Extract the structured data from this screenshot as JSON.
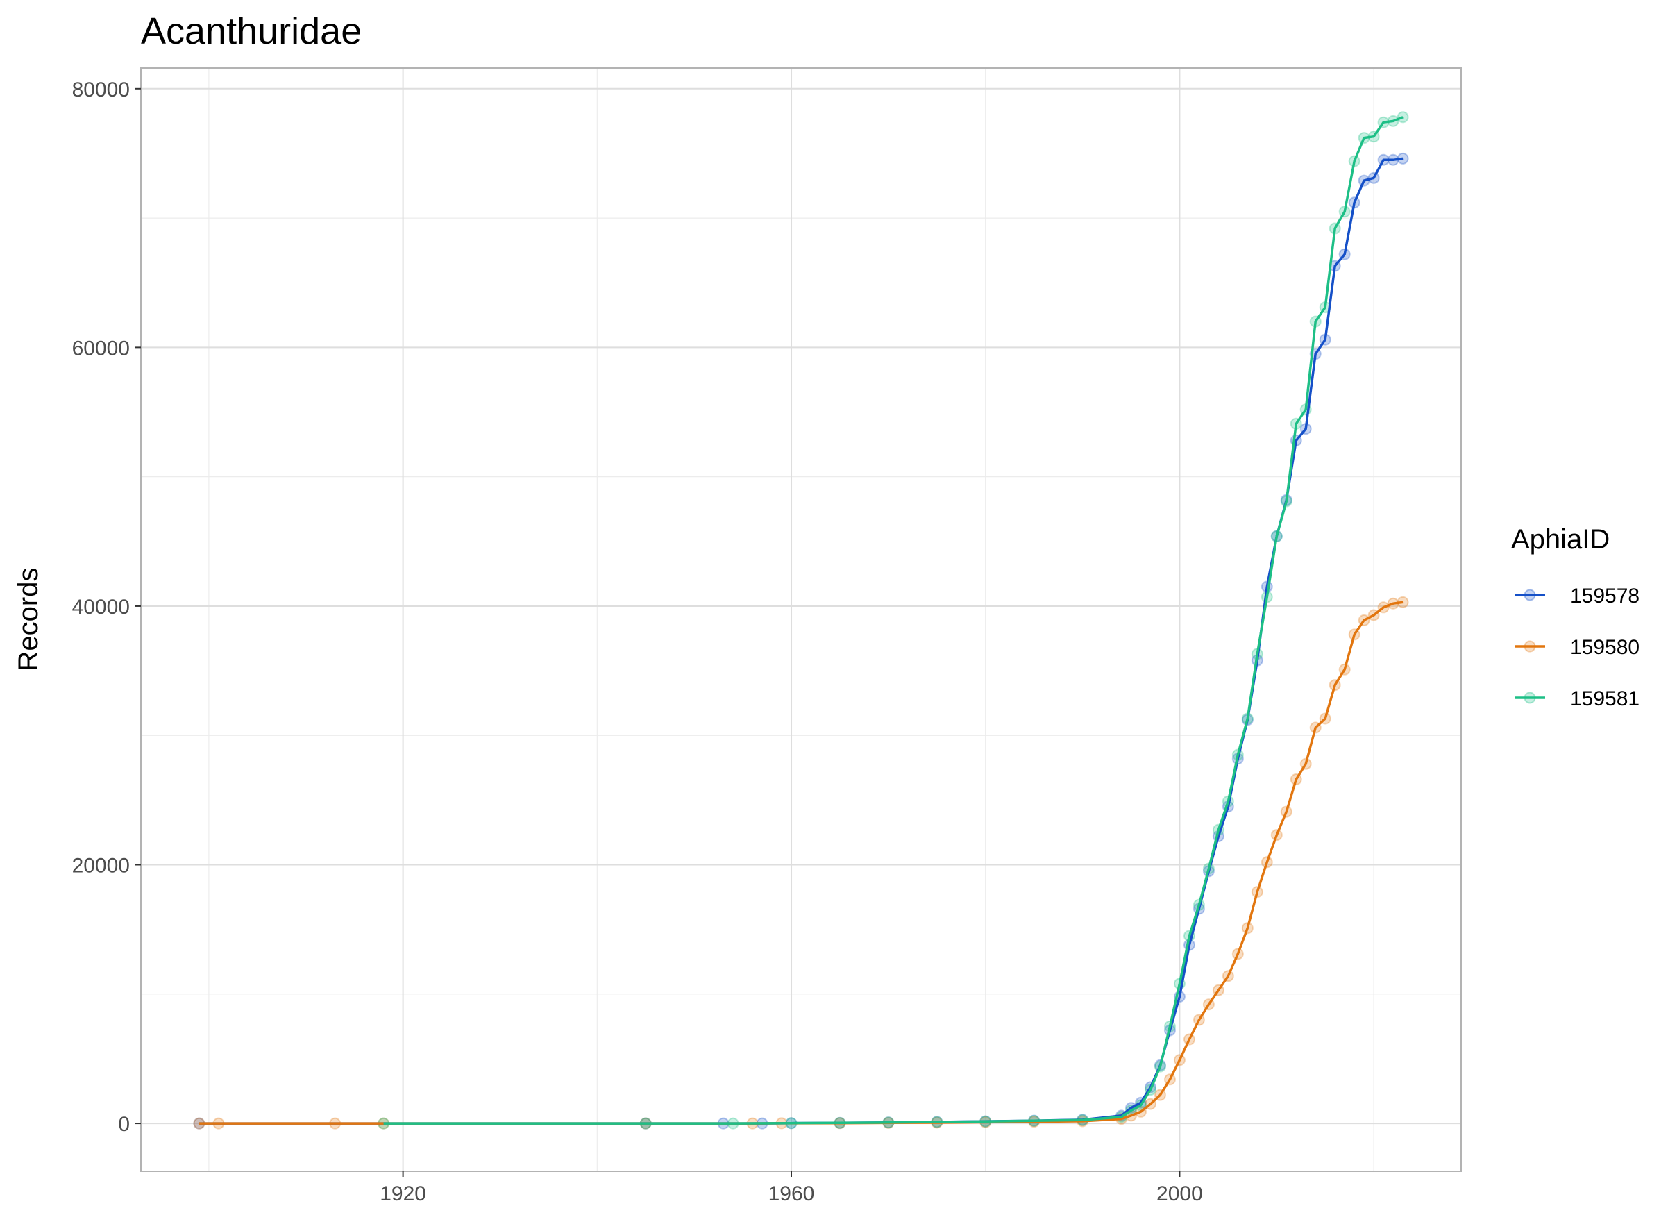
{
  "chart_data": {
    "type": "line",
    "title": "Acanthuridae",
    "xlabel": "",
    "ylabel": "Records",
    "xlim": [
      1893,
      2029
    ],
    "ylim": [
      -3700,
      81600
    ],
    "x_ticks": [
      1920,
      1960,
      2000
    ],
    "y_ticks": [
      0,
      20000,
      40000,
      60000,
      80000
    ],
    "grid": true,
    "legend": {
      "title": "AphiaID",
      "position": "right"
    },
    "markers": "points with low opacity",
    "series": [
      {
        "name": "159578",
        "color": "#1550c8",
        "points": [
          [
            1899,
            0
          ],
          [
            1945,
            0
          ],
          [
            1953,
            0
          ],
          [
            1957,
            0
          ],
          [
            1960,
            20
          ],
          [
            1965,
            40
          ],
          [
            1970,
            70
          ],
          [
            1975,
            110
          ],
          [
            1980,
            160
          ],
          [
            1985,
            210
          ],
          [
            1990,
            280
          ],
          [
            1994,
            600
          ],
          [
            1995,
            1200
          ],
          [
            1996,
            1600
          ],
          [
            1997,
            2800
          ],
          [
            1998,
            4500
          ],
          [
            1999,
            7200
          ],
          [
            2000,
            9800
          ],
          [
            2001,
            13800
          ],
          [
            2002,
            16600
          ],
          [
            2003,
            19500
          ],
          [
            2004,
            22200
          ],
          [
            2005,
            24500
          ],
          [
            2006,
            28200
          ],
          [
            2007,
            31200
          ],
          [
            2008,
            35800
          ],
          [
            2009,
            41500
          ],
          [
            2010,
            45400
          ],
          [
            2011,
            48200
          ],
          [
            2012,
            52800
          ],
          [
            2013,
            53700
          ],
          [
            2014,
            59500
          ],
          [
            2015,
            60600
          ],
          [
            2016,
            66300
          ],
          [
            2017,
            67200
          ],
          [
            2018,
            71200
          ],
          [
            2019,
            72900
          ],
          [
            2020,
            73100
          ],
          [
            2021,
            74500
          ],
          [
            2022,
            74500
          ],
          [
            2023,
            74600
          ]
        ]
      },
      {
        "name": "159580",
        "color": "#e2760f",
        "points": [
          [
            1899,
            0
          ],
          [
            1901,
            0
          ],
          [
            1913,
            0
          ],
          [
            1918,
            0
          ],
          [
            1945,
            0
          ],
          [
            1956,
            0
          ],
          [
            1959,
            10
          ],
          [
            1965,
            20
          ],
          [
            1970,
            40
          ],
          [
            1975,
            60
          ],
          [
            1980,
            90
          ],
          [
            1985,
            130
          ],
          [
            1990,
            170
          ],
          [
            1994,
            350
          ],
          [
            1995,
            600
          ],
          [
            1996,
            900
          ],
          [
            1997,
            1500
          ],
          [
            1998,
            2200
          ],
          [
            1999,
            3400
          ],
          [
            2000,
            4900
          ],
          [
            2001,
            6500
          ],
          [
            2002,
            8000
          ],
          [
            2003,
            9200
          ],
          [
            2004,
            10300
          ],
          [
            2005,
            11400
          ],
          [
            2006,
            13100
          ],
          [
            2007,
            15100
          ],
          [
            2008,
            17900
          ],
          [
            2009,
            20200
          ],
          [
            2010,
            22300
          ],
          [
            2011,
            24100
          ],
          [
            2012,
            26600
          ],
          [
            2013,
            27800
          ],
          [
            2014,
            30600
          ],
          [
            2015,
            31300
          ],
          [
            2016,
            33900
          ],
          [
            2017,
            35100
          ],
          [
            2018,
            37800
          ],
          [
            2019,
            38900
          ],
          [
            2020,
            39300
          ],
          [
            2021,
            39900
          ],
          [
            2022,
            40200
          ],
          [
            2023,
            40300
          ]
        ]
      },
      {
        "name": "159581",
        "color": "#1dbf86",
        "points": [
          [
            1918,
            0
          ],
          [
            1945,
            0
          ],
          [
            1954,
            0
          ],
          [
            1960,
            20
          ],
          [
            1965,
            40
          ],
          [
            1970,
            70
          ],
          [
            1975,
            110
          ],
          [
            1980,
            150
          ],
          [
            1985,
            200
          ],
          [
            1990,
            260
          ],
          [
            1994,
            500
          ],
          [
            1995,
            1000
          ],
          [
            1996,
            1400
          ],
          [
            1997,
            2600
          ],
          [
            1998,
            4400
          ],
          [
            1999,
            7500
          ],
          [
            2000,
            10800
          ],
          [
            2001,
            14500
          ],
          [
            2002,
            16900
          ],
          [
            2003,
            19700
          ],
          [
            2004,
            22700
          ],
          [
            2005,
            24900
          ],
          [
            2006,
            28500
          ],
          [
            2007,
            31300
          ],
          [
            2008,
            36300
          ],
          [
            2009,
            40700
          ],
          [
            2010,
            45400
          ],
          [
            2011,
            48100
          ],
          [
            2012,
            54100
          ],
          [
            2013,
            55200
          ],
          [
            2014,
            62000
          ],
          [
            2015,
            63100
          ],
          [
            2016,
            69200
          ],
          [
            2017,
            70500
          ],
          [
            2018,
            74400
          ],
          [
            2019,
            76200
          ],
          [
            2020,
            76300
          ],
          [
            2021,
            77400
          ],
          [
            2022,
            77500
          ],
          [
            2023,
            77800
          ]
        ]
      }
    ]
  }
}
